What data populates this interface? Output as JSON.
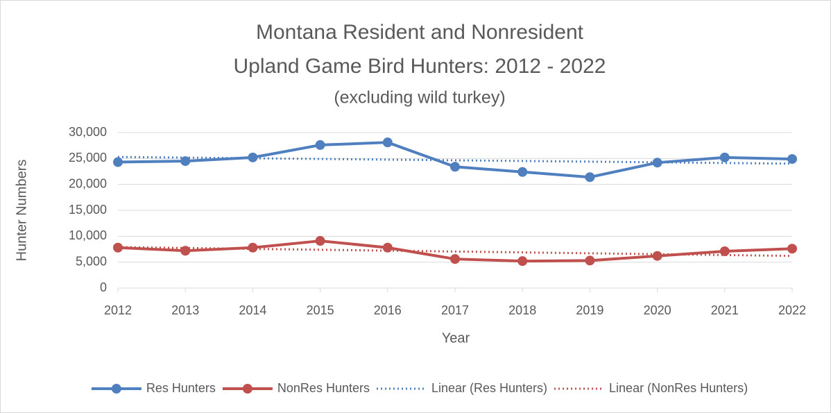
{
  "chart_data": {
    "type": "line",
    "title": [
      "Montana Resident and Nonresident",
      "Upland Game Bird Hunters: 2012 - 2022"
    ],
    "subtitle": "(excluding wild turkey)",
    "x_label": "Year",
    "y_label": "Hunter Numbers",
    "x": [
      2012,
      2013,
      2014,
      2015,
      2016,
      2017,
      2018,
      2019,
      2020,
      2021,
      2022
    ],
    "xlim": [
      2012,
      2022
    ],
    "xticks": [
      2012,
      2013,
      2014,
      2015,
      2016,
      2017,
      2018,
      2019,
      2020,
      2021,
      2022
    ],
    "ylim": [
      0,
      30000
    ],
    "yticks": [
      0,
      {
        "value": 5000,
        "label": "5,000"
      },
      {
        "value": 10000,
        "label": "10,000"
      },
      {
        "value": 15000,
        "label": "15,000"
      },
      {
        "value": 20000,
        "label": "20,000"
      },
      {
        "value": 25000,
        "label": "25,000"
      },
      {
        "value": 30000,
        "label": "30,000"
      }
    ],
    "grid": true,
    "legend": "bottom",
    "series": [
      {
        "name": "Res Hunters",
        "color": "#4f7fbf",
        "style": "solid",
        "markers": true,
        "values": [
          24300,
          24500,
          25200,
          27600,
          28100,
          23400,
          22400,
          21400,
          24200,
          25200,
          24900
        ]
      },
      {
        "name": "NonRes Hunters",
        "color": "#c0504d",
        "style": "solid",
        "markers": true,
        "values": [
          7800,
          7200,
          7800,
          9100,
          7800,
          5600,
          5200,
          5300,
          6200,
          7100,
          7600
        ]
      },
      {
        "name": "Linear (Res Hunters)",
        "color": "#4f7fbf",
        "style": "dotted",
        "markers": false,
        "values": [
          25300,
          25170,
          25040,
          24910,
          24780,
          24650,
          24520,
          24390,
          24260,
          24130,
          24000
        ]
      },
      {
        "name": "Linear (NonRes Hunters)",
        "color": "#c0504d",
        "style": "dotted",
        "markers": false,
        "values": [
          7900,
          7730,
          7560,
          7390,
          7220,
          7050,
          6880,
          6710,
          6540,
          6370,
          6200
        ]
      }
    ]
  }
}
